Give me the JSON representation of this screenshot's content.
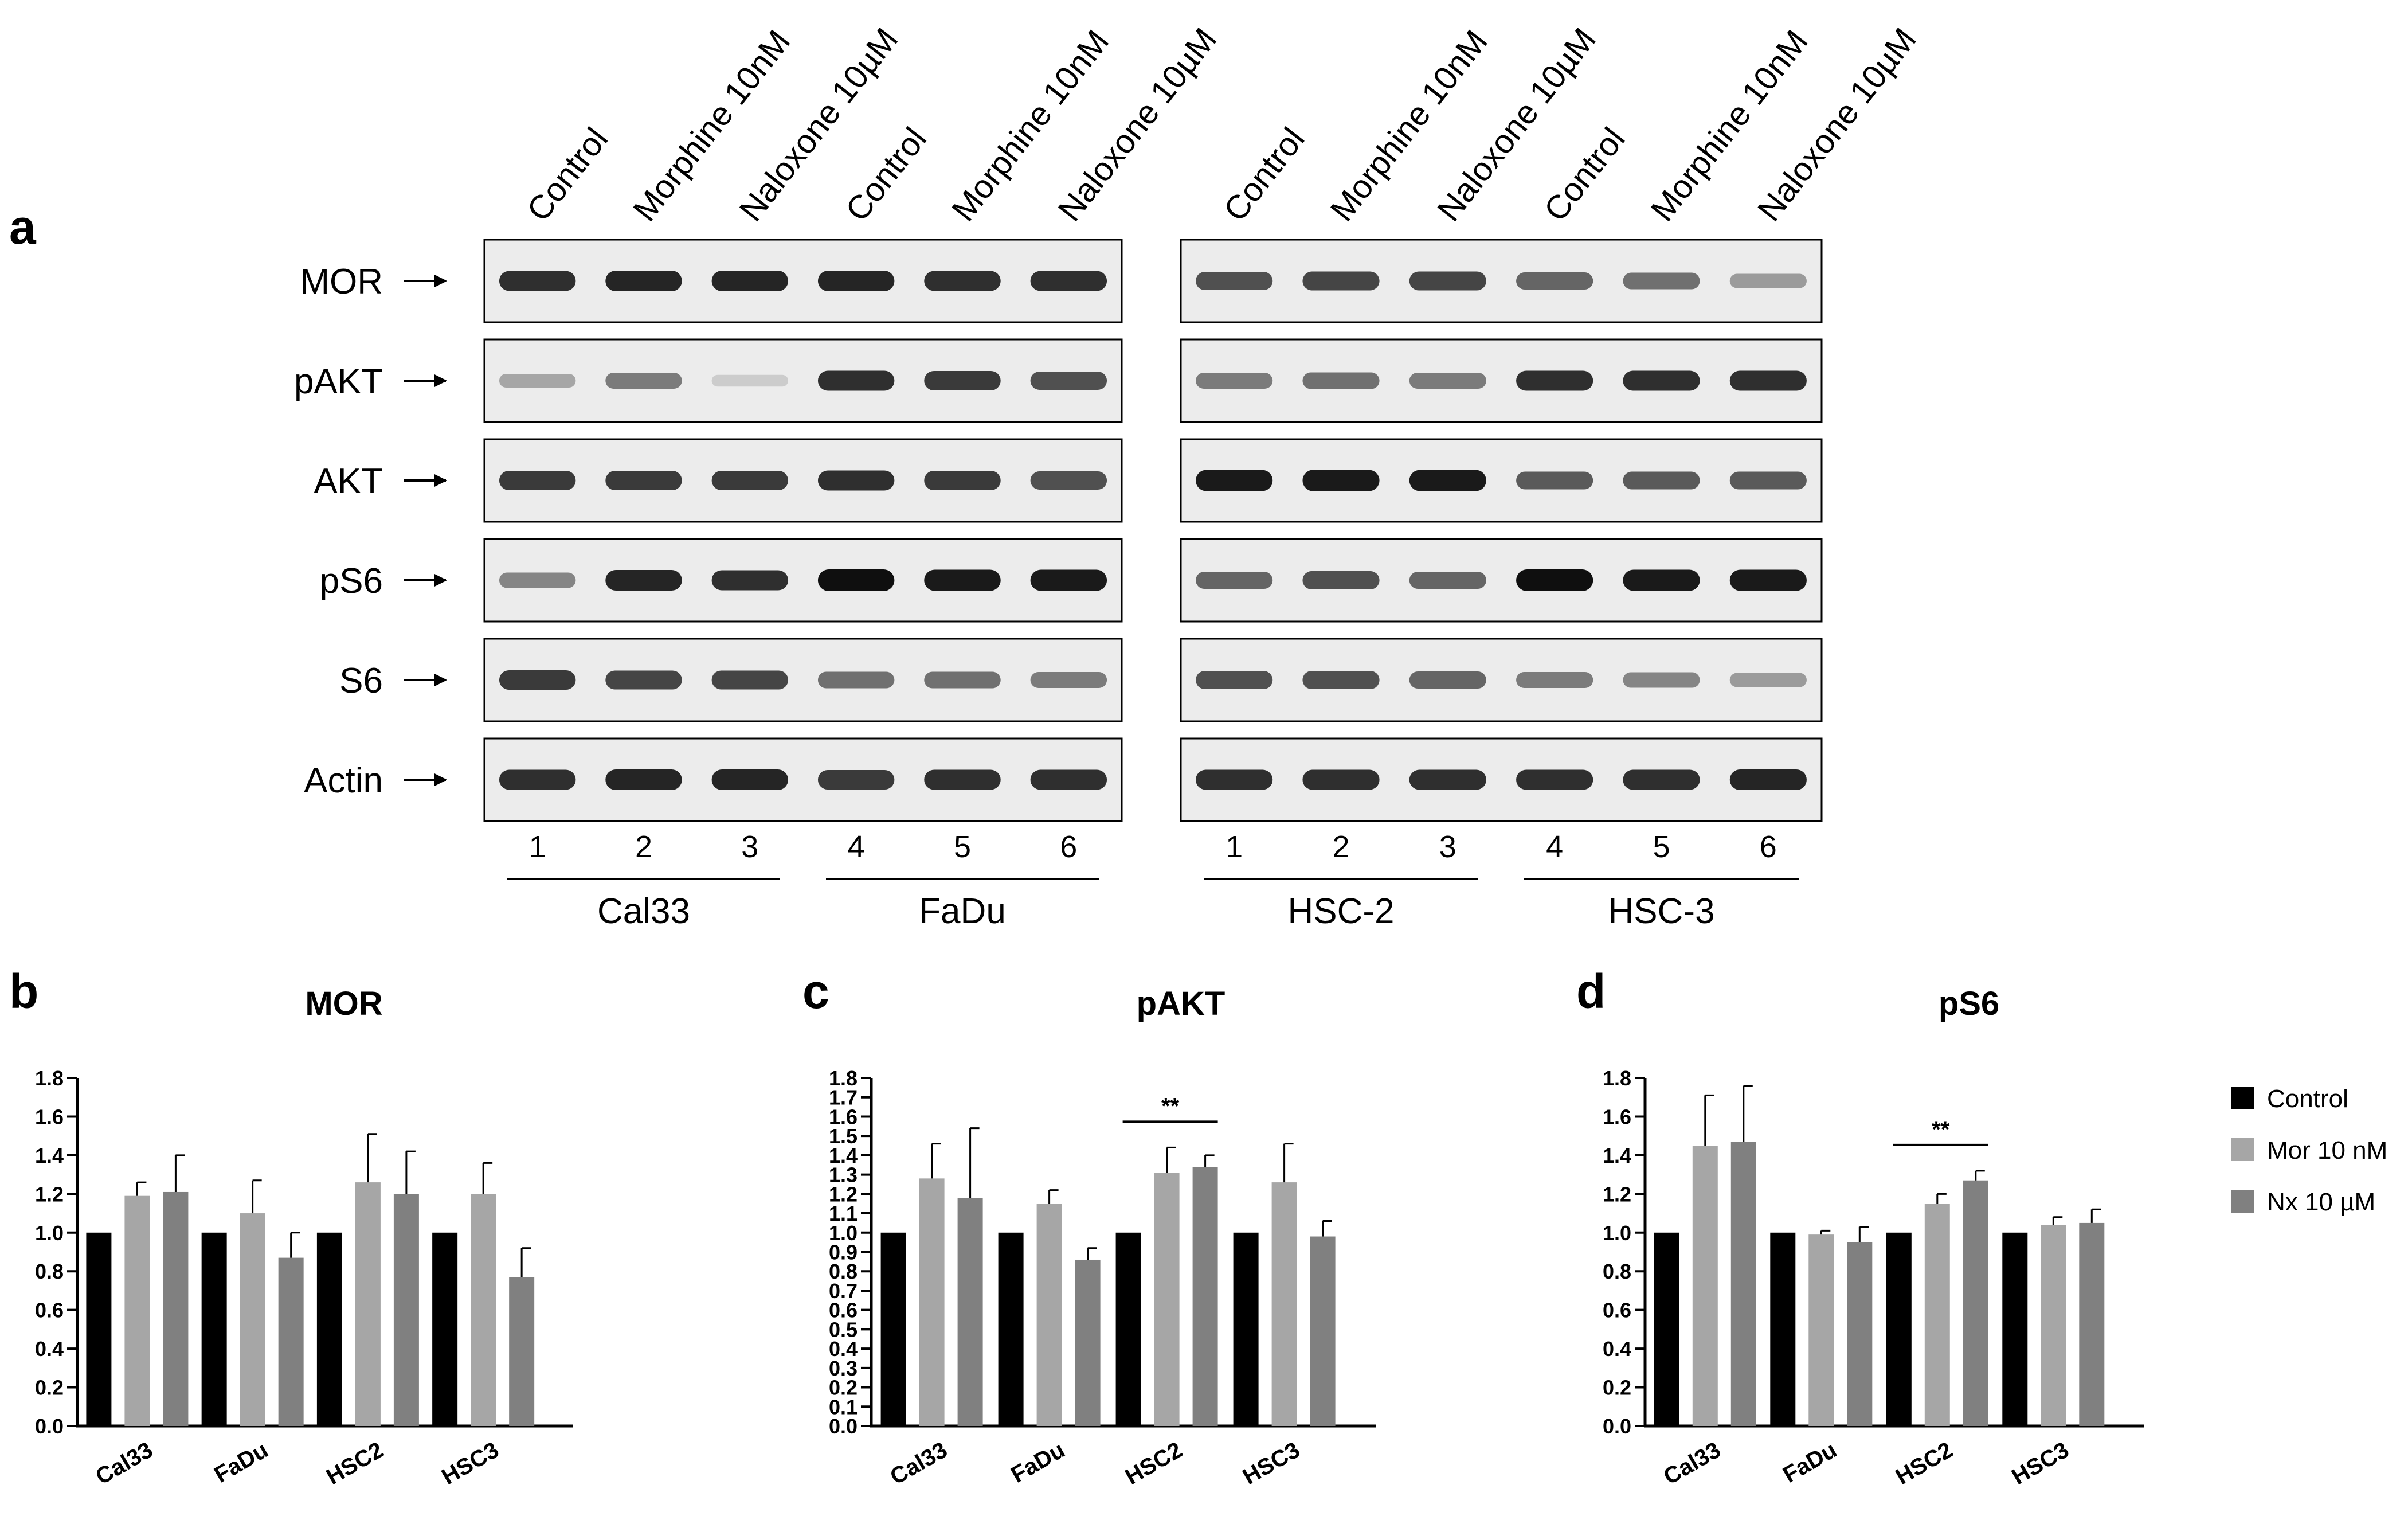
{
  "panel_a": {
    "letter": "a",
    "lanes": [
      "Control",
      "Morphine 10nM",
      "Naloxone 10µM",
      "Control",
      "Morphine 10nM",
      "Naloxone 10µM"
    ],
    "lane_numbers": [
      "1",
      "2",
      "3",
      "4",
      "5",
      "6"
    ],
    "rows": [
      "MOR",
      "pAKT",
      "AKT",
      "pS6",
      "S6",
      "Actin"
    ],
    "blots": [
      {
        "groups": [
          "Cal33",
          "FaDu"
        ]
      },
      {
        "groups": [
          "HSC-2",
          "HSC-3"
        ]
      }
    ],
    "band_intensity": [
      [
        [
          0.85,
          0.9,
          0.9,
          0.9,
          0.85,
          0.85
        ],
        [
          0.3,
          0.5,
          0.12,
          0.85,
          0.8,
          0.7
        ],
        [
          0.8,
          0.8,
          0.8,
          0.85,
          0.8,
          0.7
        ],
        [
          0.45,
          0.9,
          0.85,
          1.0,
          0.95,
          0.95
        ],
        [
          0.8,
          0.75,
          0.75,
          0.55,
          0.55,
          0.5
        ],
        [
          0.85,
          0.9,
          0.9,
          0.8,
          0.85,
          0.85
        ]
      ],
      [
        [
          0.7,
          0.75,
          0.75,
          0.6,
          0.55,
          0.35
        ],
        [
          0.5,
          0.55,
          0.5,
          0.85,
          0.85,
          0.85
        ],
        [
          0.95,
          0.95,
          0.95,
          0.65,
          0.65,
          0.65
        ],
        [
          0.6,
          0.7,
          0.6,
          1.0,
          0.95,
          0.95
        ],
        [
          0.7,
          0.7,
          0.6,
          0.5,
          0.45,
          0.35
        ],
        [
          0.85,
          0.85,
          0.85,
          0.85,
          0.85,
          0.9
        ]
      ]
    ]
  },
  "legend": {
    "items": [
      {
        "label": "Control",
        "color": "#000000"
      },
      {
        "label": "Mor 10 nM",
        "color": "#a6a6a6"
      },
      {
        "label": "Nx 10 µM",
        "color": "#808080"
      }
    ]
  },
  "chart_data": [
    {
      "letter": "b",
      "type": "bar",
      "title": "MOR",
      "categories": [
        "Cal33",
        "FaDu",
        "HSC2",
        "HSC3"
      ],
      "series": [
        {
          "name": "Control",
          "values": [
            1.0,
            1.0,
            1.0,
            1.0
          ],
          "errors": [
            0,
            0,
            0,
            0
          ]
        },
        {
          "name": "Mor 10 nM",
          "values": [
            1.19,
            1.1,
            1.26,
            1.2
          ],
          "errors": [
            0.07,
            0.17,
            0.25,
            0.16
          ]
        },
        {
          "name": "Nx 10 µM",
          "values": [
            1.21,
            0.87,
            1.2,
            0.77
          ],
          "errors": [
            0.19,
            0.13,
            0.22,
            0.15
          ]
        }
      ],
      "yticks": [
        "0.0",
        "0.2",
        "0.4",
        "0.6",
        "0.8",
        "1.0",
        "1.2",
        "1.4",
        "1.6",
        "1.8"
      ],
      "ylim": [
        0,
        1.8
      ],
      "significance": []
    },
    {
      "letter": "c",
      "type": "bar",
      "title": "pAKT",
      "categories": [
        "Cal33",
        "FaDu",
        "HSC2",
        "HSC3"
      ],
      "series": [
        {
          "name": "Control",
          "values": [
            1.0,
            1.0,
            1.0,
            1.0
          ],
          "errors": [
            0,
            0,
            0,
            0
          ]
        },
        {
          "name": "Mor 10 nM",
          "values": [
            1.28,
            1.15,
            1.31,
            1.26
          ],
          "errors": [
            0.18,
            0.07,
            0.13,
            0.2
          ]
        },
        {
          "name": "Nx 10 µM",
          "values": [
            1.18,
            0.86,
            1.34,
            0.98
          ],
          "errors": [
            0.36,
            0.06,
            0.06,
            0.08
          ]
        }
      ],
      "yticks": [
        "0.0",
        "0.1",
        "0.2",
        "0.3",
        "0.4",
        "0.5",
        "0.6",
        "0.7",
        "0.8",
        "0.9",
        "1.0",
        "1.1",
        "1.2",
        "1.3",
        "1.4",
        "1.5",
        "1.6",
        "1.7",
        "1.8"
      ],
      "ylim": [
        0,
        1.8
      ],
      "significance": [
        {
          "category": "HSC2",
          "label": "**"
        }
      ]
    },
    {
      "letter": "d",
      "type": "bar",
      "title": "pS6",
      "categories": [
        "Cal33",
        "FaDu",
        "HSC2",
        "HSC3"
      ],
      "series": [
        {
          "name": "Control",
          "values": [
            1.0,
            1.0,
            1.0,
            1.0
          ],
          "errors": [
            0,
            0,
            0,
            0
          ]
        },
        {
          "name": "Mor 10 nM",
          "values": [
            1.45,
            0.99,
            1.15,
            1.04
          ],
          "errors": [
            0.26,
            0.02,
            0.05,
            0.04
          ]
        },
        {
          "name": "Nx 10 µM",
          "values": [
            1.47,
            0.95,
            1.27,
            1.05
          ],
          "errors": [
            0.29,
            0.08,
            0.05,
            0.07
          ]
        }
      ],
      "yticks": [
        "0.0",
        "0.2",
        "0.4",
        "0.6",
        "0.8",
        "1.0",
        "1.2",
        "1.4",
        "1.6",
        "1.8"
      ],
      "ylim": [
        0,
        1.8
      ],
      "significance": [
        {
          "category": "HSC2",
          "label": "**"
        }
      ]
    }
  ]
}
